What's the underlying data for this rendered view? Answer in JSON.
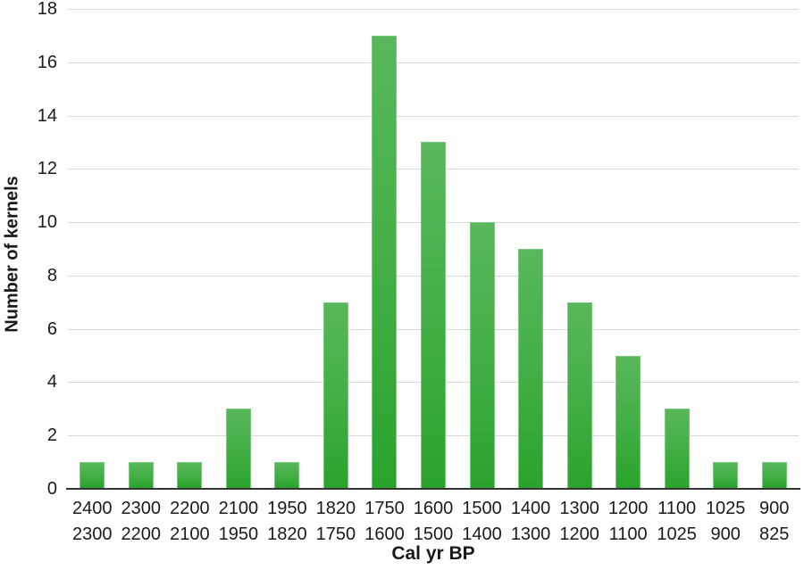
{
  "chart_data": {
    "type": "bar",
    "title": "",
    "categories": [
      "2400/2300",
      "2300/2200",
      "2200/2100",
      "2100/1950",
      "1950/1820",
      "1820/1750",
      "1750/1600",
      "1600/1500",
      "1500/1400",
      "1400/1300",
      "1300/1200",
      "1200/1100",
      "1100/1025",
      "1025/900",
      "900/825"
    ],
    "values": [
      1,
      1,
      1,
      3,
      1,
      7,
      17,
      13,
      10,
      9,
      7,
      5,
      3,
      1,
      1
    ],
    "xlabel": "Cal yr BP",
    "ylabel": "Number of kernels",
    "ylim": [
      0,
      18
    ],
    "ytick_step": 2,
    "grid": "horizontal",
    "legend": "none"
  },
  "colors": {
    "bar_top": "#58b75a",
    "bar_bottom": "#2aa32c",
    "bar_edge": "#7cc77e",
    "gridline": "#d5d9dd",
    "axis_line": "#333333",
    "text": "#1a1a1a",
    "background": "#ffffff"
  }
}
